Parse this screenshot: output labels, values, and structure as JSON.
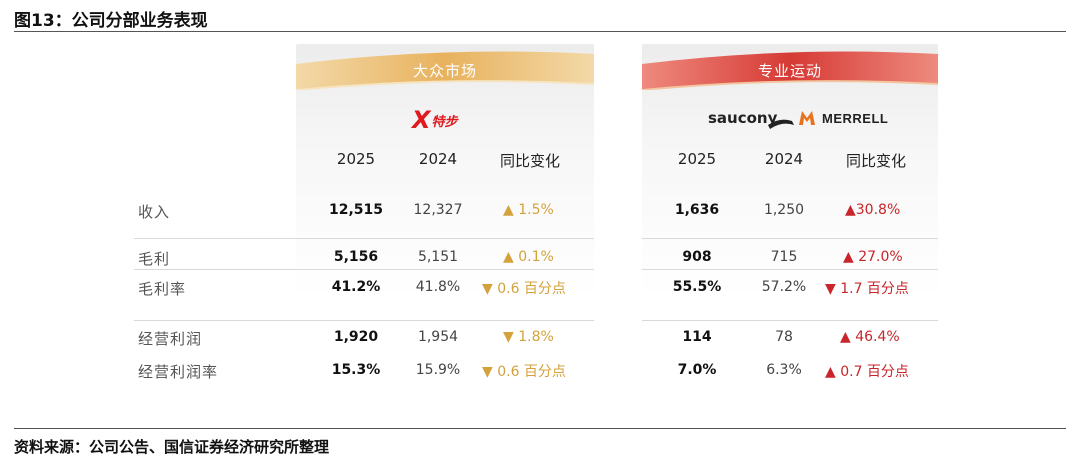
{
  "figure_title": "图13：公司分部业务表现",
  "source": "资料来源：公司公告、国信证券经济研究所整理",
  "colors": {
    "gold_banner": "#e9b765",
    "red_banner": "#d63a35",
    "up_gold": "#d4a23c",
    "up_red": "#c8262b"
  },
  "segments": [
    {
      "banner": "大众市场",
      "brands": [
        "X",
        "特步"
      ],
      "headers": [
        "2025",
        "2024",
        "同比变化"
      ]
    },
    {
      "banner": "专业运动",
      "brands": [
        "saucony",
        "MERRELL"
      ],
      "headers": [
        "2025",
        "2024",
        "同比变化"
      ]
    }
  ],
  "rows": [
    {
      "label": "收入",
      "mass": {
        "y2025": "12,515",
        "y2024": "12,327",
        "change": "▲ 1.5%"
      },
      "pro": {
        "y2025": "1,636",
        "y2024": "1,250",
        "change": "▲30.8%"
      }
    },
    {
      "label": "毛利",
      "mass": {
        "y2025": "5,156",
        "y2024": "5,151",
        "change": "▲ 0.1%"
      },
      "pro": {
        "y2025": "908",
        "y2024": "715",
        "change": "▲ 27.0%"
      }
    },
    {
      "label": "毛利率",
      "mass": {
        "y2025": "41.2%",
        "y2024": "41.8%",
        "change": "▼ 0.6 百分点"
      },
      "pro": {
        "y2025": "55.5%",
        "y2024": "57.2%",
        "change": "▼ 1.7 百分点"
      }
    },
    {
      "label": "经营利润",
      "mass": {
        "y2025": "1,920",
        "y2024": "1,954",
        "change": "▼ 1.8%"
      },
      "pro": {
        "y2025": "114",
        "y2024": "78",
        "change": "▲ 46.4%"
      }
    },
    {
      "label": "经营利润率",
      "mass": {
        "y2025": "15.3%",
        "y2024": "15.9%",
        "change": "▼ 0.6 百分点"
      },
      "pro": {
        "y2025": "7.0%",
        "y2024": "6.3%",
        "change": "▲ 0.7 百分点"
      }
    }
  ]
}
